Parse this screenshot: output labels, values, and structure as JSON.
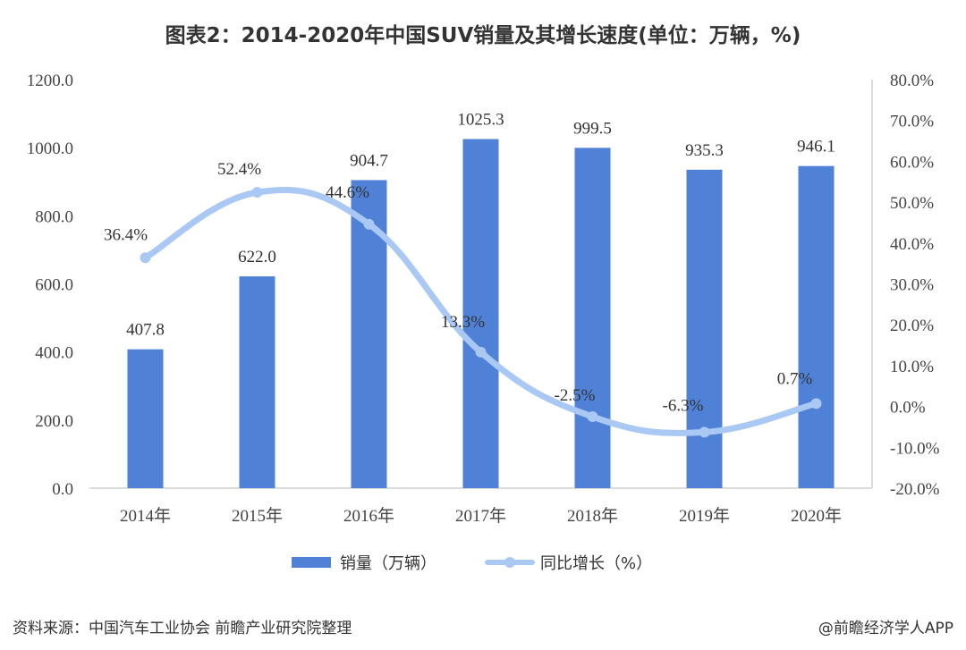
{
  "colors": {
    "bar": "#4f81d6",
    "line": "#a9c8f3",
    "axis": "#cfcfcf"
  },
  "source_text": "资料来源：中国汽车工业协会 前瞻产业研究院整理",
  "credit_text": "@前瞻经济学人APP",
  "chart_data": {
    "type": "bar",
    "title": "图表2：2014-2020年中国SUV销量及其增长速度(单位：万辆，%)",
    "categories": [
      "2014年",
      "2015年",
      "2016年",
      "2017年",
      "2018年",
      "2019年",
      "2020年"
    ],
    "series": [
      {
        "name": "销量（万辆）",
        "type": "bar",
        "axis": "left",
        "values": [
          407.8,
          622.0,
          904.7,
          1025.3,
          999.5,
          935.3,
          946.1
        ],
        "labels": [
          "407.8",
          "622.0",
          "904.7",
          "1025.3",
          "999.5",
          "935.3",
          "946.1"
        ]
      },
      {
        "name": "同比增长（%）",
        "type": "line",
        "axis": "right",
        "smooth": true,
        "values": [
          36.4,
          52.4,
          44.6,
          13.3,
          -2.5,
          -6.3,
          0.7
        ],
        "labels": [
          "36.4%",
          "52.4%",
          "44.6%",
          "13.3%",
          "-2.5%",
          "-6.3%",
          "0.7%"
        ]
      }
    ],
    "y_left": {
      "min": 0,
      "max": 1200,
      "step": 200,
      "ticks": [
        "0.0",
        "200.0",
        "400.0",
        "600.0",
        "800.0",
        "1000.0",
        "1200.0"
      ]
    },
    "y_right": {
      "min": -20,
      "max": 80,
      "step": 10,
      "ticks": [
        "-20.0%",
        "-10.0%",
        "0.0%",
        "10.0%",
        "20.0%",
        "30.0%",
        "40.0%",
        "50.0%",
        "60.0%",
        "70.0%",
        "80.0%"
      ]
    },
    "grid": false,
    "legend_position": "bottom-center"
  }
}
